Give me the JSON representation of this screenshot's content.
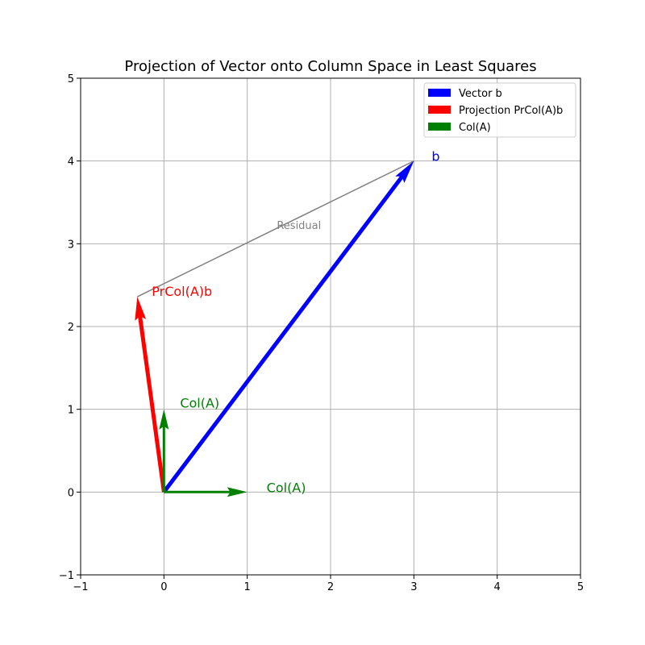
{
  "chart_data": {
    "type": "vector",
    "title": "Projection of Vector onto Column Space in Least Squares",
    "xlim": [
      -1,
      5
    ],
    "ylim": [
      -1,
      5
    ],
    "x_ticks": [
      "−1",
      "0",
      "1",
      "2",
      "3",
      "4",
      "5"
    ],
    "y_ticks": [
      "−1",
      "0",
      "1",
      "2",
      "3",
      "4",
      "5"
    ],
    "grid": true,
    "legend_position": "top-right",
    "vectors": [
      {
        "legend": "Vector b",
        "label": "b",
        "from": [
          0,
          0
        ],
        "to": [
          3,
          4
        ],
        "color": "#0000ff"
      },
      {
        "legend": "Projection PrCol(A)b",
        "label": "PrCol(A)b",
        "from": [
          0,
          0
        ],
        "to": [
          -0.32,
          2.36
        ],
        "color": "#ff0000"
      },
      {
        "legend": "Col(A)",
        "label": "Col(A)",
        "from": [
          0,
          0
        ],
        "to": [
          1,
          0
        ],
        "color": "#008000"
      },
      {
        "legend": "",
        "label": "Col(A)",
        "from": [
          0,
          0
        ],
        "to": [
          0,
          1
        ],
        "color": "#008000"
      }
    ],
    "residual": {
      "label": "Residual",
      "from": [
        -0.32,
        2.36
      ],
      "to": [
        3,
        4
      ],
      "color": "#808080"
    },
    "legend": [
      {
        "label": "Vector b",
        "color": "#0000ff"
      },
      {
        "label": "Projection PrCol(A)b",
        "color": "#ff0000"
      },
      {
        "label": "Col(A)",
        "color": "#008000"
      }
    ]
  }
}
